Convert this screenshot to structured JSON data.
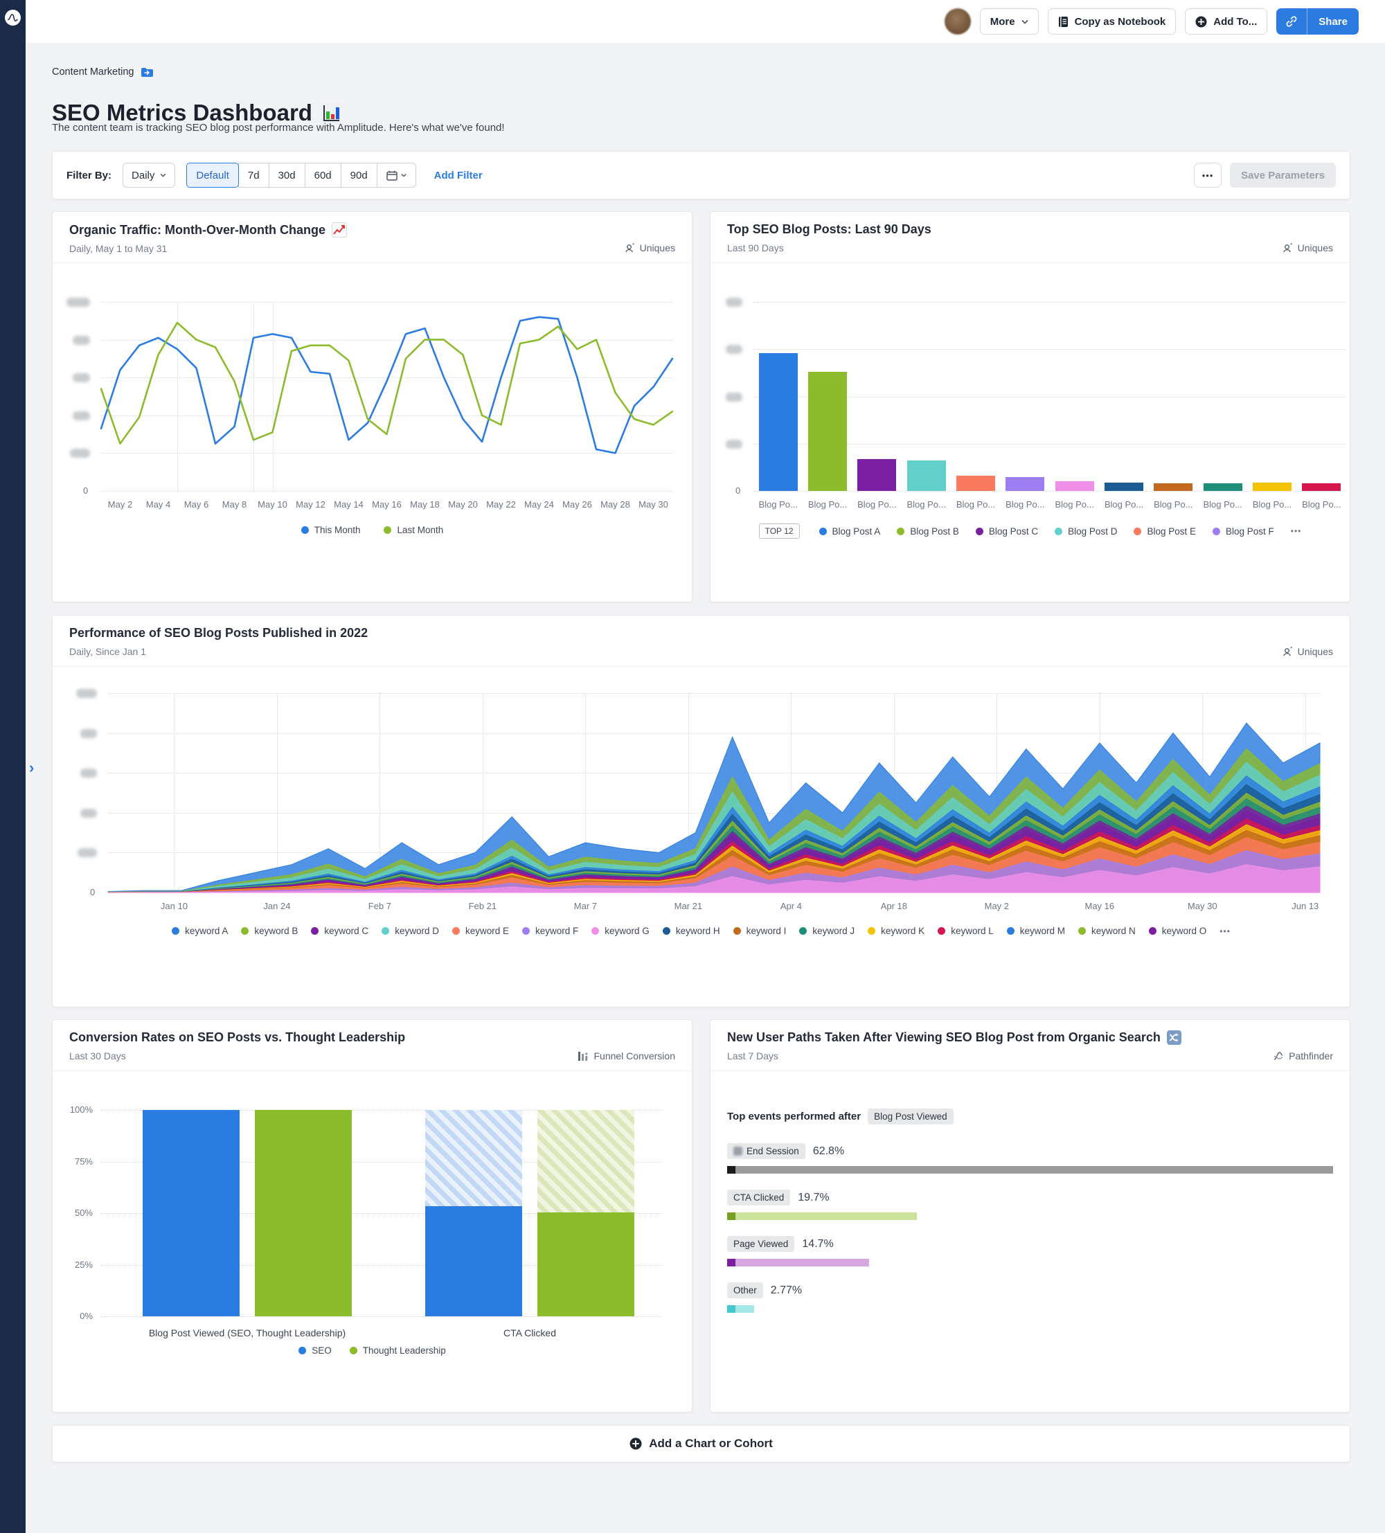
{
  "colors": {
    "accent_blue": "#2b7be0",
    "green": "#8cbb2c",
    "sidebar_navy": "#1c2a4a",
    "page_bg": "#f2f3f5"
  },
  "topbar": {
    "more": "More",
    "copy_as_notebook": "Copy as Notebook",
    "add_to": "Add To...",
    "share": "Share"
  },
  "breadcrumb": {
    "label": "Content Marketing"
  },
  "page": {
    "title": "SEO Metrics Dashboard",
    "subtitle": "The content team is tracking SEO blog post performance with Amplitude. Here's what we've found!"
  },
  "filter_bar": {
    "label": "Filter By:",
    "interval": "Daily",
    "presets": [
      "Default",
      "7d",
      "30d",
      "60d",
      "90d"
    ],
    "active_preset": "Default",
    "add_filter": "Add Filter",
    "save_parameters": "Save Parameters"
  },
  "cards": [
    {
      "title": "Organic Traffic: Month-Over-Month Change",
      "subtitle": "Daily, May 1 to May 31",
      "mode": "Uniques"
    },
    {
      "title": "Top SEO Blog Posts: Last 90 Days",
      "subtitle": "Last 90 Days",
      "mode": "Uniques"
    },
    {
      "title": "Performance of SEO Blog Posts Published in 2022",
      "subtitle": "Daily, Since Jan 1",
      "mode": "Uniques"
    },
    {
      "title": "Conversion Rates on SEO Posts vs. Thought Leadership",
      "subtitle": "Last 30 Days",
      "mode": "Funnel Conversion"
    },
    {
      "title": "New User Paths Taken After Viewing SEO Blog Post from Organic Search",
      "subtitle": "Last 7 Days",
      "mode": "Pathfinder"
    }
  ],
  "add_chart": {
    "label": "Add a Chart or Cohort"
  },
  "chart_data": [
    {
      "type": "line",
      "title": "Organic Traffic: Month-Over-Month Change",
      "y_axis_redacted": true,
      "y_gridlines": 6,
      "days": 31,
      "x_tick_days": [
        1,
        3,
        5,
        7,
        9,
        11,
        13,
        15,
        17,
        19,
        21,
        23,
        25,
        27,
        29
      ],
      "x_tick_labels": [
        "May 2",
        "May 4",
        "May 6",
        "May 8",
        "May 10",
        "May 12",
        "May 14",
        "May 16",
        "May 18",
        "May 20",
        "May 22",
        "May 24",
        "May 26",
        "May 28",
        "May 30"
      ],
      "weekend_days": [
        4,
        8,
        9
      ],
      "series": [
        {
          "name": "This Month",
          "color": "#2b7ce0",
          "values": [
            33,
            64,
            77,
            81,
            75,
            65,
            25,
            34,
            81,
            83,
            81,
            63,
            62,
            27,
            36,
            58,
            83,
            86,
            60,
            38,
            26,
            60,
            90,
            92,
            91,
            60,
            22,
            20,
            45,
            55,
            70
          ]
        },
        {
          "name": "Last Month",
          "color": "#8cbb2c",
          "values": [
            54,
            25,
            39,
            72,
            89,
            80,
            76,
            58,
            27,
            31,
            74,
            77,
            77,
            69,
            38,
            30,
            70,
            80,
            80,
            72,
            40,
            35,
            78,
            80,
            87,
            75,
            80,
            52,
            38,
            35,
            42
          ]
        }
      ]
    },
    {
      "type": "bar",
      "title": "Top SEO Blog Posts: Last 90 Days",
      "y_axis_redacted": true,
      "y_gridlines": 5,
      "categories": [
        "Blog Po...",
        "Blog Po...",
        "Blog Po...",
        "Blog Po...",
        "Blog Po...",
        "Blog Po...",
        "Blog Po...",
        "Blog Po...",
        "Blog Po...",
        "Blog Po...",
        "Blog Po...",
        "Blog Po..."
      ],
      "values": [
        73,
        63,
        17,
        16,
        8,
        7.5,
        5,
        4.5,
        4.2,
        4.2,
        4.3,
        4.2
      ],
      "colors": [
        "#2b7ce0",
        "#8cbb2c",
        "#7b1fa2",
        "#62cfca",
        "#fa7a5f",
        "#9d7ef2",
        "#f08fe8",
        "#1b5c94",
        "#c26a1f",
        "#1f8e78",
        "#f5c400",
        "#d6164e"
      ],
      "legend_badge": "TOP 12",
      "legend_items": [
        {
          "label": "Blog Post A",
          "color": "#2b7ce0"
        },
        {
          "label": "Blog Post B",
          "color": "#8cbb2c"
        },
        {
          "label": "Blog Post C",
          "color": "#7b1fa2"
        },
        {
          "label": "Blog Post D",
          "color": "#62cfca"
        },
        {
          "label": "Blog Post E",
          "color": "#fa7a5f"
        },
        {
          "label": "Blog Post F",
          "color": "#9d7ef2"
        }
      ],
      "legend_more": true
    },
    {
      "type": "area",
      "title": "Performance of SEO Blog Posts Published in 2022",
      "y_axis_redacted": true,
      "y_gridlines": 6,
      "sample_step_days": 5,
      "span_days": 165,
      "x_tick_days": [
        9,
        23,
        37,
        51,
        65,
        79,
        93,
        107,
        121,
        135,
        149,
        163
      ],
      "x_tick_labels": [
        "Jan 10",
        "Jan 24",
        "Feb 7",
        "Feb 21",
        "Mar 7",
        "Mar 21",
        "Apr 4",
        "Apr 18",
        "May 2",
        "May 16",
        "May 30",
        "Jun 13"
      ],
      "total_pct": [
        0.5,
        1,
        1,
        6,
        10,
        14,
        22,
        12,
        25,
        14,
        20,
        38,
        18,
        25,
        22,
        20,
        30,
        78,
        35,
        55,
        40,
        65,
        45,
        68,
        48,
        72,
        52,
        75,
        55,
        80,
        58,
        85,
        65,
        75
      ],
      "series": [
        {
          "name": "keyword A",
          "color": "#2b7ce0",
          "w": [
            40,
            16
          ]
        },
        {
          "name": "keyword B",
          "color": "#8cbb2c",
          "w": [
            12,
            9
          ]
        },
        {
          "name": "keyword C",
          "color": "#7b1fa2",
          "w": [
            3.5,
            6
          ]
        },
        {
          "name": "keyword D",
          "color": "#62cfca",
          "w": [
            12,
            9
          ]
        },
        {
          "name": "keyword E",
          "color": "#fa7a5f",
          "w": [
            6,
            9
          ]
        },
        {
          "name": "keyword F",
          "color": "#9d7ef2",
          "w": [
            3,
            10
          ]
        },
        {
          "name": "keyword G",
          "color": "#f08fe8",
          "w": [
            1.5,
            20
          ]
        },
        {
          "name": "keyword H",
          "color": "#1b5c94",
          "w": [
            3.5,
            6
          ]
        },
        {
          "name": "keyword I",
          "color": "#c26a1f",
          "w": [
            2.5,
            5
          ]
        },
        {
          "name": "keyword J",
          "color": "#1f8e78",
          "w": [
            2.5,
            5
          ]
        },
        {
          "name": "keyword K",
          "color": "#f5c400",
          "w": [
            2,
            4
          ]
        },
        {
          "name": "keyword L",
          "color": "#d6164e",
          "w": [
            2,
            4
          ]
        },
        {
          "name": "keyword M",
          "color": "#2b7ce0",
          "w": [
            3.5,
            6
          ]
        },
        {
          "name": "keyword N",
          "color": "#8cbb2c",
          "w": [
            2.5,
            4
          ]
        },
        {
          "name": "keyword O",
          "color": "#7b1fa2",
          "w": [
            1.5,
            3
          ]
        }
      ],
      "stack_order": [
        6,
        5,
        4,
        8,
        10,
        11,
        2,
        14,
        9,
        13,
        7,
        12,
        3,
        1,
        0
      ],
      "legend_more": true
    },
    {
      "type": "funnel",
      "title": "Conversion Rates on SEO Posts vs. Thought Leadership",
      "y_ticks": [
        "100%",
        "75%",
        "50%",
        "25%",
        "0%"
      ],
      "categories": [
        "Blog Post Viewed (SEO, Thought Leadership)",
        "CTA Clicked"
      ],
      "series": [
        {
          "name": "SEO",
          "color": "#2b7ce0",
          "hatch_a": "#c3d8f4",
          "hatch_b": "#e9f1fb",
          "values": [
            100,
            53.5
          ]
        },
        {
          "name": "Thought Leadership",
          "color": "#8cbb2c",
          "hatch_a": "#dbe7bb",
          "hatch_b": "#f1f6e3",
          "values": [
            100,
            50.5
          ]
        }
      ]
    },
    {
      "type": "pathfinder",
      "title": "New User Paths Taken After Viewing SEO Blog Post from Organic Search",
      "heading": "Top events performed after",
      "event_chip": "Blog Post Viewed",
      "max_pct": 62.8,
      "rows": [
        {
          "label": "End Session",
          "pct_label": "62.8%",
          "pct": 62.8,
          "bar": "#9a9a9a",
          "lead": "#1c1c1c",
          "icon": true
        },
        {
          "label": "CTA Clicked",
          "pct_label": "19.7%",
          "pct": 19.7,
          "bar": "#cde29c",
          "lead": "#76a024",
          "icon": false
        },
        {
          "label": "Page Viewed",
          "pct_label": "14.7%",
          "pct": 14.7,
          "bar": "#d7a8e0",
          "lead": "#7b1fa2",
          "icon": false
        },
        {
          "label": "Other",
          "pct_label": "2.77%",
          "pct": 2.77,
          "bar": "#a5e6e9",
          "lead": "#45c7cd",
          "icon": false
        }
      ]
    }
  ]
}
